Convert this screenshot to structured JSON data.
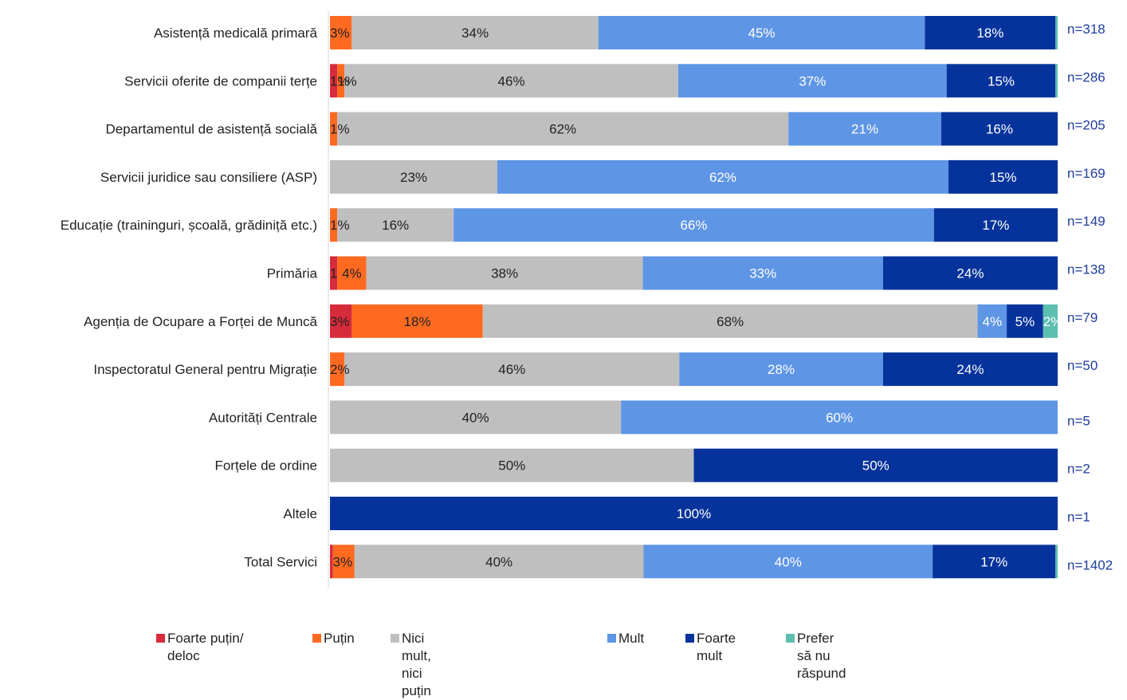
{
  "chart_data": {
    "type": "bar",
    "orientation": "horizontal",
    "stacked": "percent",
    "title": "",
    "xlabel": "",
    "ylabel": "",
    "xlim": [
      0,
      100
    ],
    "grid": false,
    "legend_position": "bottom",
    "categories": [
      "Asistență medicală primară",
      "Servicii oferite de companii terțe",
      "Departamentul de asistență socială",
      "Servicii juridice sau consiliere (ASP)",
      "Educație (traininguri, școală, grădiniță etc.)",
      "Primăria",
      "Agenția de Ocupare a Forței de Muncă",
      "Inspectoratul General pentru Migrație",
      "Autorități Centrale",
      "Forțele de ordine",
      "Altele",
      "Total  Servici"
    ],
    "n_labels": [
      "n=318",
      "n=286",
      "n=205",
      "n=169",
      "n=149",
      "n=138",
      "n=79",
      "n=50",
      "n=5",
      "n=2",
      "n=1",
      "n=1402"
    ],
    "series": [
      {
        "name": "Foarte puțin/ deloc",
        "color": "#d62b3a",
        "label_color": "#222222",
        "values": [
          0,
          1,
          0,
          0,
          0,
          1,
          3,
          0,
          0,
          0,
          0,
          0.4
        ],
        "labels": [
          "",
          "1%",
          "",
          "",
          "",
          "1",
          "3%",
          "",
          "",
          "",
          "",
          ""
        ]
      },
      {
        "name": "Puțin",
        "color": "#ff6a21",
        "label_color": "#222222",
        "values": [
          3,
          1,
          1,
          0,
          1,
          4,
          18,
          2,
          0,
          0,
          0,
          3
        ],
        "labels": [
          "3%",
          "1%",
          "1%",
          "",
          "1%",
          "4%",
          "18%",
          "2%",
          "",
          "",
          "",
          "3%"
        ]
      },
      {
        "name": "Nici mult, nici puțin",
        "color": "#bfbfbf",
        "label_color": "#222222",
        "values": [
          34,
          46,
          62,
          23,
          16,
          38,
          68,
          46,
          40,
          50,
          0,
          40
        ],
        "labels": [
          "34%",
          "46%",
          "62%",
          "23%",
          "16%",
          "38%",
          "68%",
          "46%",
          "40%",
          "50%",
          "",
          "40%"
        ]
      },
      {
        "name": "Mult",
        "color": "#5e95e5",
        "label_color": "#ffffff",
        "values": [
          45,
          37,
          21,
          62,
          66,
          33,
          4,
          28,
          60,
          0,
          0,
          40
        ],
        "labels": [
          "45%",
          "37%",
          "21%",
          "62%",
          "66%",
          "33%",
          "4%",
          "28%",
          "60%",
          "",
          "",
          "40%"
        ]
      },
      {
        "name": "Foarte mult",
        "color": "#06339b",
        "label_color": "#ffffff",
        "values": [
          18,
          15,
          16,
          15,
          17,
          24,
          5,
          24,
          0,
          50,
          100,
          17
        ],
        "labels": [
          "18%",
          "15%",
          "16%",
          "15%",
          "17%",
          "24%",
          "5%",
          "24%",
          "",
          "50%",
          "100%",
          "17%"
        ]
      },
      {
        "name": "Prefer să nu răspund",
        "color": "#5cbfb0",
        "label_color": "#ffffff",
        "values": [
          0.3,
          0.3,
          0,
          0,
          0,
          0,
          2,
          0,
          0,
          0,
          0,
          0.3
        ],
        "labels": [
          "",
          "",
          "",
          "",
          "",
          "",
          "2%",
          "",
          "",
          "",
          "",
          ""
        ]
      }
    ]
  },
  "legend": {
    "items": [
      {
        "name": "Foarte puțin/ deloc",
        "color": "#d62b3a"
      },
      {
        "name": "Puțin",
        "color": "#ff6a21"
      },
      {
        "name": "Nici mult, nici puțin",
        "color": "#bfbfbf"
      },
      {
        "name": "Mult",
        "color": "#5e95e5"
      },
      {
        "name": "Foarte mult",
        "color": "#06339b"
      },
      {
        "name": "Prefer să nu răspund",
        "color": "#5cbfb0"
      }
    ]
  }
}
